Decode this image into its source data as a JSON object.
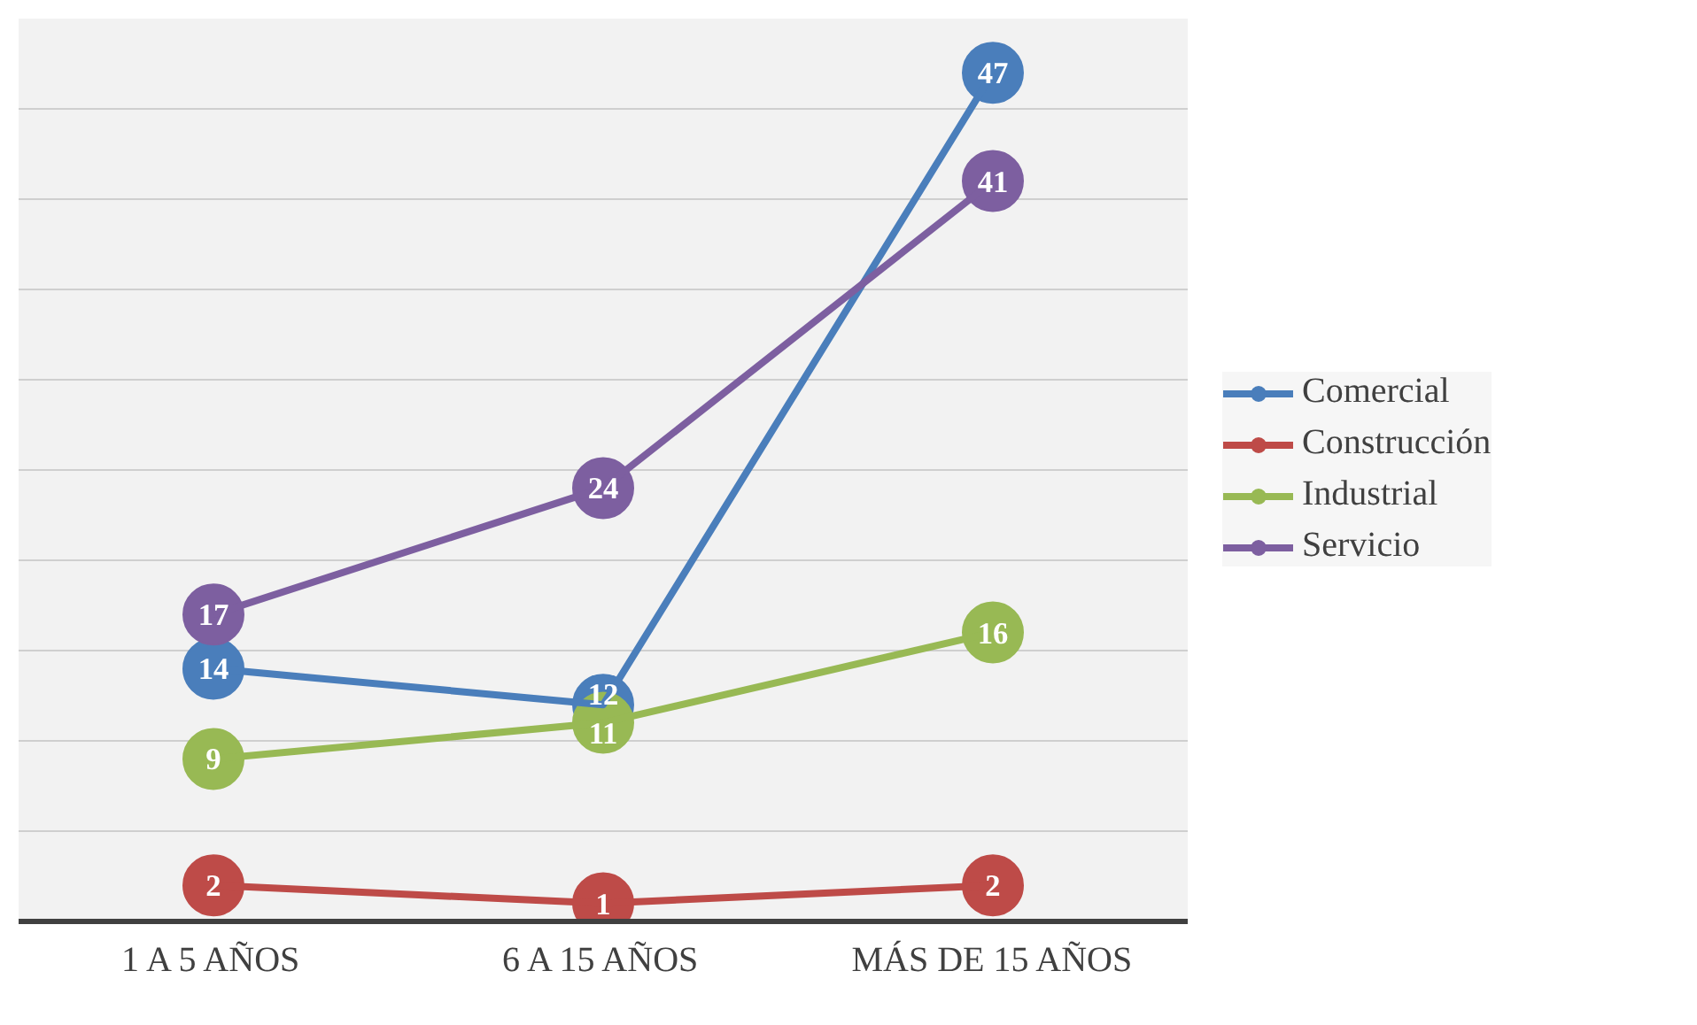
{
  "chart_data": {
    "type": "line",
    "categories": [
      "1 A 5 AÑOS",
      "6 A 15 AÑOS",
      "MÁS DE 15 AÑOS"
    ],
    "series": [
      {
        "name": "Comercial",
        "color": "#4a7ebb",
        "values": [
          14,
          12,
          47
        ]
      },
      {
        "name": "Construcción",
        "color": "#be4b48",
        "values": [
          2,
          1,
          2
        ]
      },
      {
        "name": "Industrial",
        "color": "#98b954",
        "values": [
          9,
          11,
          16
        ]
      },
      {
        "name": "Servicio",
        "color": "#7d5fa0",
        "values": [
          17,
          24,
          41
        ]
      }
    ],
    "ylim": [
      0,
      50
    ],
    "yticks": [
      0,
      5,
      10,
      15,
      20,
      25,
      30,
      35,
      40,
      45,
      50
    ],
    "tick_labels": "x",
    "grid": "y",
    "legend": "right",
    "marker": "circle",
    "line_style": "solid",
    "data_labels": true
  }
}
